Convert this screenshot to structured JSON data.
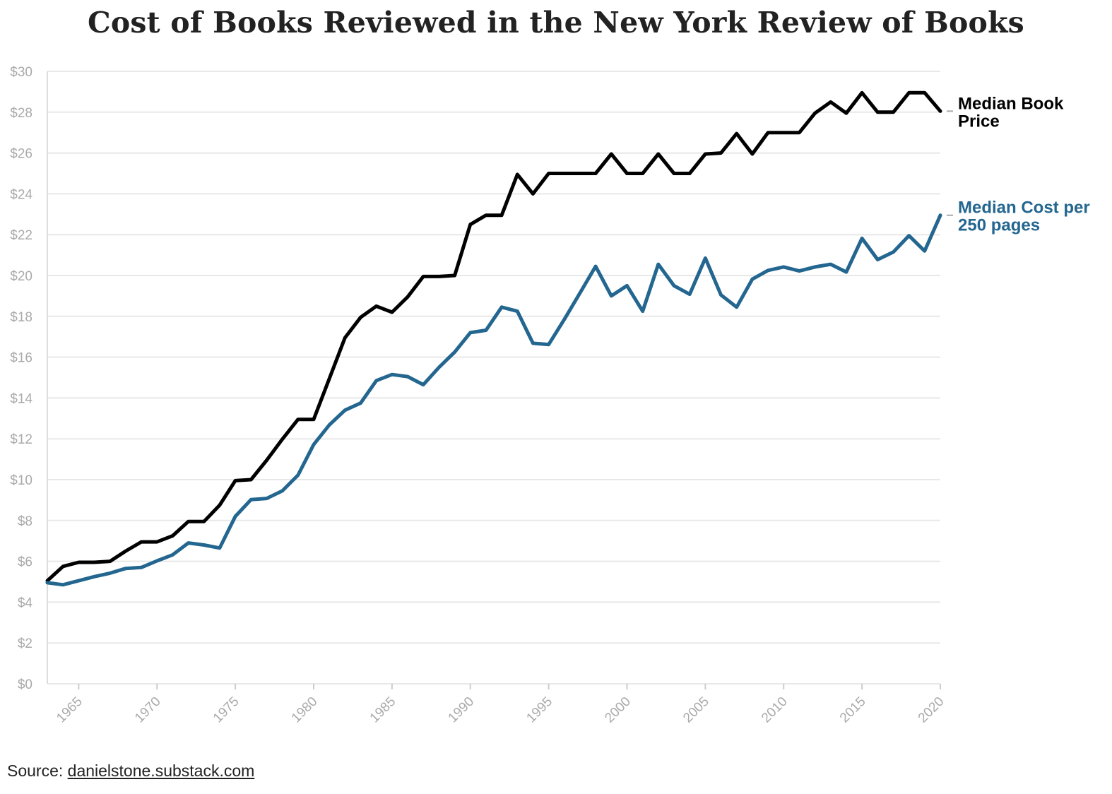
{
  "chart_data": {
    "type": "line",
    "title": "Cost of Books Reviewed in the New York Review of Books",
    "xlabel": "",
    "ylabel": "",
    "xlim": [
      1963,
      2020
    ],
    "ylim": [
      0,
      30
    ],
    "x_ticks": [
      "1965",
      "1970",
      "1975",
      "1980",
      "1985",
      "1990",
      "1995",
      "2000",
      "2005",
      "2010",
      "2015",
      "2020"
    ],
    "y_ticks": [
      "$0",
      "$2",
      "$4",
      "$6",
      "$8",
      "$10",
      "$12",
      "$14",
      "$16",
      "$18",
      "$20",
      "$22",
      "$24",
      "$26",
      "$28",
      "$30"
    ],
    "grid": true,
    "legend": "direct labels at right end of lines",
    "x": [
      1963,
      1964,
      1965,
      1966,
      1967,
      1968,
      1969,
      1970,
      1971,
      1972,
      1973,
      1974,
      1975,
      1976,
      1977,
      1978,
      1979,
      1980,
      1981,
      1982,
      1983,
      1984,
      1985,
      1986,
      1987,
      1988,
      1989,
      1990,
      1991,
      1992,
      1993,
      1994,
      1995,
      1996,
      1997,
      1998,
      1999,
      2000,
      2001,
      2002,
      2003,
      2004,
      2005,
      2006,
      2007,
      2008,
      2009,
      2010,
      2011,
      2012,
      2013,
      2014,
      2015,
      2016,
      2017,
      2018,
      2019,
      2020
    ],
    "series": [
      {
        "name": "Median Book Price",
        "label_lines": [
          "Median Book",
          "Price"
        ],
        "color": "#000000",
        "values": [
          5.05,
          5.75,
          5.95,
          5.95,
          6.0,
          6.5,
          6.95,
          6.95,
          7.25,
          7.95,
          7.95,
          8.75,
          9.95,
          10.0,
          10.95,
          11.98,
          12.95,
          12.95,
          14.95,
          16.95,
          17.95,
          18.5,
          18.2,
          18.95,
          19.95,
          19.95,
          20.0,
          22.5,
          22.95,
          22.95,
          24.95,
          24.0,
          25.0,
          25.0,
          25.0,
          25.0,
          25.95,
          25.0,
          25.0,
          25.95,
          25.0,
          25.0,
          25.95,
          26.0,
          26.95,
          25.95,
          27.0,
          27.0,
          27.0,
          27.95,
          28.5,
          27.95,
          28.95,
          28.0,
          28.0,
          28.95,
          28.95,
          28.05
        ]
      },
      {
        "name": "Median Cost per 250 pages",
        "label_lines": [
          "Median Cost per",
          "250 pages"
        ],
        "color": "#23668f",
        "values": [
          4.95,
          4.85,
          5.05,
          5.25,
          5.42,
          5.65,
          5.7,
          6.02,
          6.32,
          6.9,
          6.8,
          6.65,
          8.2,
          9.02,
          9.08,
          9.45,
          10.22,
          11.72,
          12.68,
          13.4,
          13.75,
          14.85,
          15.15,
          15.05,
          14.65,
          15.5,
          16.25,
          17.2,
          17.32,
          18.45,
          18.25,
          16.68,
          16.62,
          17.85,
          19.15,
          20.45,
          19.0,
          19.5,
          18.25,
          20.55,
          19.5,
          19.08,
          20.85,
          19.05,
          18.45,
          19.82,
          20.25,
          20.42,
          20.22,
          20.42,
          20.55,
          20.17,
          21.82,
          20.78,
          21.15,
          21.95,
          21.2,
          22.95
        ]
      }
    ]
  },
  "source": {
    "label": "Source:",
    "link_text": "danielstone.substack.com"
  }
}
